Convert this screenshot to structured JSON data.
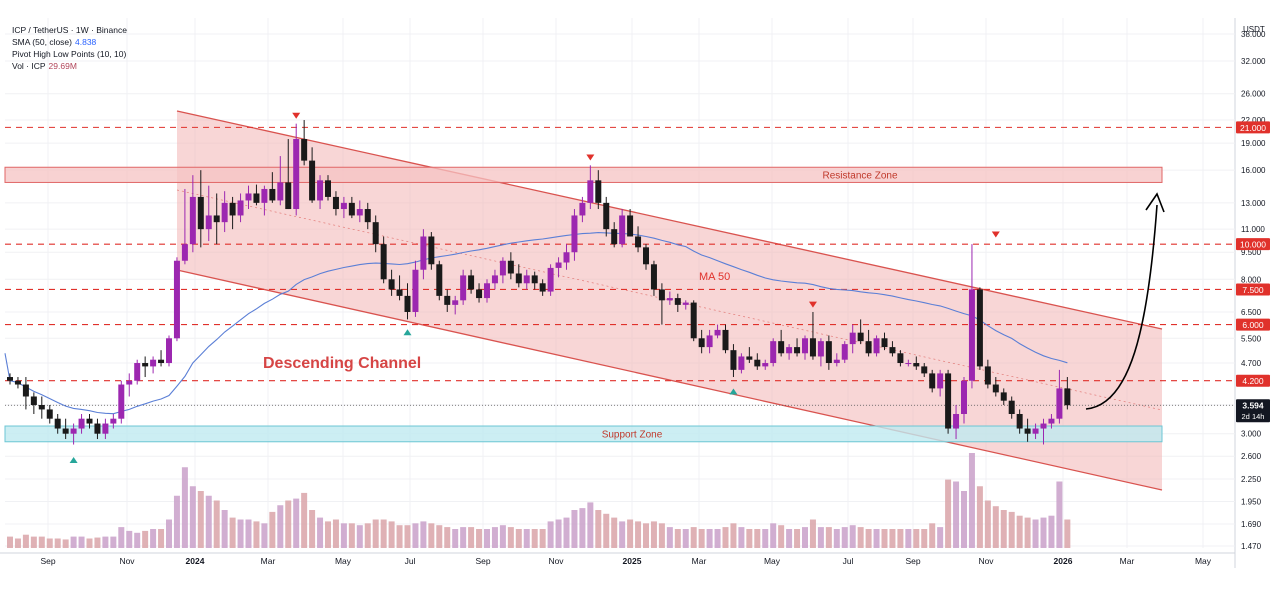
{
  "header": {
    "symbol_line": "ICP / TetherUS · 1W · Binance",
    "sma_label": "SMA (50, close)",
    "sma_value": "4.838",
    "pivot_label": "Pivot High Low Points (10, 10)",
    "vol_label": "Vol · ICP",
    "vol_value": "29.69M"
  },
  "price_unit": "USDT",
  "colors": {
    "up": "#9c27b0",
    "down": "#1a1a1a",
    "ma": "#5b7fd6",
    "channel_fill": "#f3b5b5",
    "channel_stroke": "#d9534f",
    "support_fill": "#bfeaf0",
    "resistance_fill": "#f6c3c3",
    "label_red": "#e0312b",
    "vol_up": "#c9a0c9",
    "vol_down": "#d9a3a8"
  },
  "chart_data": {
    "type": "candlestick",
    "x_ticks": [
      "Sep",
      "Nov",
      "2024",
      "Mar",
      "May",
      "Jul",
      "Sep",
      "Nov",
      "2025",
      "Mar",
      "May",
      "Jul",
      "Sep",
      "Nov",
      "2026",
      "Mar",
      "May"
    ],
    "y_ticks": [
      38.0,
      32.0,
      26.0,
      22.0,
      19.0,
      16.0,
      13.0,
      11.0,
      9.5,
      8.0,
      6.5,
      5.5,
      4.7,
      3.6,
      3.0,
      2.6,
      2.25,
      1.95,
      1.69,
      1.47
    ],
    "y_tick_labels": [
      "38.000",
      "32.000",
      "26.000",
      "22.000",
      "19.000",
      "16.000",
      "13.000",
      "11.000",
      "9.500",
      "8.000",
      "6.500",
      "5.500",
      "4.700",
      "3.600",
      "3.000",
      "2.600",
      "2.250",
      "1.950",
      "1.690",
      "1.470"
    ],
    "y_scale": "log",
    "price_labels": [
      {
        "value": 21.0,
        "text": "21.000"
      },
      {
        "value": 10.0,
        "text": "10.000"
      },
      {
        "value": 7.5,
        "text": "7.500"
      },
      {
        "value": 6.0,
        "text": "6.000"
      },
      {
        "value": 4.2,
        "text": "4.200"
      }
    ],
    "last_price": {
      "value": 3.594,
      "text": "3.594",
      "countdown": "2d 14h"
    },
    "zones": [
      {
        "name": "Resistance Zone",
        "from": 14.8,
        "to": 16.3
      },
      {
        "name": "Support Zone",
        "from": 2.85,
        "to": 3.15
      }
    ],
    "annotations": {
      "channel": "Descending Channel",
      "ma": "MA 50"
    },
    "candles": [
      [
        4.3,
        4.4,
        4.1,
        4.2
      ],
      [
        4.2,
        4.3,
        4.0,
        4.1
      ],
      [
        4.1,
        4.3,
        3.5,
        3.8
      ],
      [
        3.8,
        3.9,
        3.4,
        3.6
      ],
      [
        3.6,
        3.8,
        3.3,
        3.5
      ],
      [
        3.5,
        3.6,
        3.2,
        3.3
      ],
      [
        3.3,
        3.4,
        3.0,
        3.1
      ],
      [
        3.1,
        3.3,
        2.9,
        3.0
      ],
      [
        3.0,
        3.2,
        2.8,
        3.1
      ],
      [
        3.1,
        3.4,
        3.0,
        3.3
      ],
      [
        3.3,
        3.4,
        3.1,
        3.2
      ],
      [
        3.2,
        3.3,
        2.9,
        3.0
      ],
      [
        3.0,
        3.3,
        2.9,
        3.2
      ],
      [
        3.2,
        3.4,
        3.1,
        3.3
      ],
      [
        3.3,
        4.2,
        3.2,
        4.1
      ],
      [
        4.1,
        4.4,
        3.8,
        4.2
      ],
      [
        4.2,
        4.8,
        4.1,
        4.7
      ],
      [
        4.7,
        4.9,
        4.3,
        4.6
      ],
      [
        4.6,
        4.9,
        4.4,
        4.8
      ],
      [
        4.8,
        5.1,
        4.6,
        4.7
      ],
      [
        4.7,
        5.6,
        4.6,
        5.5
      ],
      [
        5.5,
        9.2,
        5.4,
        9.0
      ],
      [
        9.0,
        14.2,
        8.8,
        10.0
      ],
      [
        10.0,
        15.5,
        9.5,
        13.5
      ],
      [
        13.5,
        16.0,
        9.8,
        11.0
      ],
      [
        11.0,
        14.5,
        10.2,
        12.0
      ],
      [
        12.0,
        13.8,
        10.0,
        11.5
      ],
      [
        11.5,
        14.0,
        10.8,
        13.0
      ],
      [
        13.0,
        13.5,
        11.0,
        12.0
      ],
      [
        12.0,
        13.8,
        11.5,
        13.2
      ],
      [
        13.2,
        14.5,
        12.5,
        13.8
      ],
      [
        13.8,
        14.6,
        12.8,
        13.0
      ],
      [
        13.0,
        14.5,
        12.0,
        14.2
      ],
      [
        14.2,
        15.8,
        13.0,
        13.2
      ],
      [
        13.2,
        17.5,
        12.8,
        14.8
      ],
      [
        14.8,
        19.5,
        12.5,
        12.5
      ],
      [
        12.5,
        21.5,
        12.0,
        19.5
      ],
      [
        19.5,
        22.0,
        16.5,
        17.0
      ],
      [
        17.0,
        18.5,
        13.0,
        13.2
      ],
      [
        13.2,
        15.5,
        12.5,
        15.0
      ],
      [
        15.0,
        15.5,
        13.2,
        13.5
      ],
      [
        13.5,
        14.0,
        12.0,
        12.5
      ],
      [
        12.5,
        13.5,
        11.8,
        13.0
      ],
      [
        13.0,
        13.5,
        11.8,
        12.0
      ],
      [
        12.0,
        13.2,
        11.5,
        12.5
      ],
      [
        12.5,
        13.0,
        11.0,
        11.5
      ],
      [
        11.5,
        12.0,
        9.5,
        10.0
      ],
      [
        10.0,
        10.5,
        7.8,
        8.0
      ],
      [
        8.0,
        8.5,
        7.2,
        7.5
      ],
      [
        7.5,
        8.2,
        7.0,
        7.2
      ],
      [
        7.2,
        7.8,
        6.2,
        6.5
      ],
      [
        6.5,
        9.0,
        6.3,
        8.5
      ],
      [
        8.5,
        11.0,
        8.0,
        10.5
      ],
      [
        10.5,
        10.8,
        8.5,
        8.8
      ],
      [
        8.8,
        9.0,
        7.0,
        7.2
      ],
      [
        7.2,
        7.5,
        6.5,
        6.8
      ],
      [
        6.8,
        7.2,
        6.4,
        7.0
      ],
      [
        7.0,
        8.5,
        6.8,
        8.2
      ],
      [
        8.2,
        8.5,
        7.3,
        7.5
      ],
      [
        7.5,
        7.8,
        6.9,
        7.1
      ],
      [
        7.1,
        8.0,
        6.9,
        7.8
      ],
      [
        7.8,
        8.5,
        7.5,
        8.2
      ],
      [
        8.2,
        9.2,
        7.8,
        9.0
      ],
      [
        9.0,
        9.5,
        8.0,
        8.3
      ],
      [
        8.3,
        8.8,
        7.6,
        7.8
      ],
      [
        7.8,
        8.5,
        7.5,
        8.2
      ],
      [
        8.2,
        8.4,
        7.5,
        7.8
      ],
      [
        7.8,
        8.0,
        7.2,
        7.4
      ],
      [
        7.4,
        8.8,
        7.2,
        8.6
      ],
      [
        8.6,
        9.2,
        8.1,
        8.9
      ],
      [
        8.9,
        10.0,
        8.5,
        9.5
      ],
      [
        9.5,
        12.5,
        9.0,
        12.0
      ],
      [
        12.0,
        13.5,
        11.5,
        13.0
      ],
      [
        13.0,
        16.5,
        12.5,
        15.0
      ],
      [
        15.0,
        16.0,
        12.5,
        13.0
      ],
      [
        13.0,
        13.5,
        10.5,
        11.0
      ],
      [
        11.0,
        11.5,
        9.8,
        10.0
      ],
      [
        10.0,
        12.5,
        9.8,
        12.0
      ],
      [
        12.0,
        12.5,
        10.5,
        10.5
      ],
      [
        10.5,
        11.2,
        9.5,
        9.8
      ],
      [
        9.8,
        10.0,
        8.5,
        8.8
      ],
      [
        8.8,
        9.0,
        7.2,
        7.5
      ],
      [
        7.5,
        7.8,
        6.0,
        7.0
      ],
      [
        7.0,
        7.4,
        6.8,
        7.1
      ],
      [
        7.1,
        7.3,
        6.5,
        6.8
      ],
      [
        6.8,
        7.0,
        6.6,
        6.9
      ],
      [
        6.9,
        7.0,
        5.4,
        5.5
      ],
      [
        5.5,
        5.8,
        5.0,
        5.2
      ],
      [
        5.2,
        5.8,
        5.0,
        5.6
      ],
      [
        5.6,
        6.0,
        5.5,
        5.8
      ],
      [
        5.8,
        6.0,
        5.0,
        5.1
      ],
      [
        5.1,
        5.3,
        4.3,
        4.5
      ],
      [
        4.5,
        5.0,
        4.4,
        4.9
      ],
      [
        4.9,
        5.2,
        4.7,
        4.8
      ],
      [
        4.8,
        5.0,
        4.5,
        4.6
      ],
      [
        4.6,
        4.8,
        4.5,
        4.7
      ],
      [
        4.7,
        5.5,
        4.6,
        5.4
      ],
      [
        5.4,
        5.8,
        4.9,
        5.0
      ],
      [
        5.0,
        5.3,
        4.8,
        5.2
      ],
      [
        5.2,
        5.5,
        4.9,
        5.0
      ],
      [
        5.0,
        5.6,
        4.8,
        5.5
      ],
      [
        5.5,
        6.5,
        4.8,
        4.9
      ],
      [
        4.9,
        5.5,
        4.6,
        5.4
      ],
      [
        5.4,
        5.6,
        4.5,
        4.7
      ],
      [
        4.7,
        5.0,
        4.6,
        4.8
      ],
      [
        4.8,
        5.4,
        4.7,
        5.3
      ],
      [
        5.3,
        6.0,
        5.0,
        5.7
      ],
      [
        5.7,
        6.2,
        5.3,
        5.4
      ],
      [
        5.4,
        5.8,
        4.9,
        5.0
      ],
      [
        5.0,
        5.6,
        4.9,
        5.5
      ],
      [
        5.5,
        5.7,
        5.1,
        5.2
      ],
      [
        5.2,
        5.4,
        4.9,
        5.0
      ],
      [
        5.0,
        5.1,
        4.6,
        4.7
      ],
      [
        4.7,
        4.8,
        4.6,
        4.7
      ],
      [
        4.7,
        4.9,
        4.5,
        4.6
      ],
      [
        4.6,
        4.7,
        4.3,
        4.4
      ],
      [
        4.4,
        4.5,
        3.9,
        4.0
      ],
      [
        4.0,
        4.5,
        3.8,
        4.4
      ],
      [
        4.4,
        4.5,
        3.0,
        3.1
      ],
      [
        3.1,
        3.6,
        2.9,
        3.4
      ],
      [
        3.4,
        4.3,
        3.2,
        4.2
      ],
      [
        4.2,
        10.0,
        4.0,
        7.5
      ],
      [
        7.5,
        7.6,
        4.5,
        4.6
      ],
      [
        4.6,
        4.8,
        4.0,
        4.1
      ],
      [
        4.1,
        4.3,
        3.8,
        3.9
      ],
      [
        3.9,
        4.0,
        3.6,
        3.7
      ],
      [
        3.7,
        3.8,
        3.3,
        3.4
      ],
      [
        3.4,
        3.5,
        3.0,
        3.1
      ],
      [
        3.1,
        3.3,
        2.85,
        3.0
      ],
      [
        3.0,
        3.2,
        2.9,
        3.1
      ],
      [
        3.1,
        3.3,
        2.8,
        3.2
      ],
      [
        3.2,
        3.4,
        3.1,
        3.3
      ],
      [
        3.3,
        4.5,
        3.2,
        4.0
      ],
      [
        4.0,
        4.3,
        3.5,
        3.594
      ]
    ],
    "volume": [
      0.12,
      0.1,
      0.14,
      0.12,
      0.12,
      0.1,
      0.1,
      0.09,
      0.12,
      0.12,
      0.1,
      0.11,
      0.12,
      0.12,
      0.22,
      0.18,
      0.16,
      0.18,
      0.2,
      0.2,
      0.3,
      0.55,
      0.85,
      0.65,
      0.6,
      0.55,
      0.5,
      0.4,
      0.32,
      0.3,
      0.3,
      0.28,
      0.26,
      0.38,
      0.45,
      0.5,
      0.52,
      0.58,
      0.4,
      0.32,
      0.28,
      0.3,
      0.26,
      0.26,
      0.24,
      0.26,
      0.3,
      0.3,
      0.28,
      0.24,
      0.24,
      0.26,
      0.28,
      0.26,
      0.24,
      0.22,
      0.2,
      0.22,
      0.22,
      0.2,
      0.2,
      0.22,
      0.24,
      0.22,
      0.2,
      0.2,
      0.2,
      0.2,
      0.28,
      0.3,
      0.32,
      0.4,
      0.42,
      0.48,
      0.4,
      0.36,
      0.32,
      0.28,
      0.3,
      0.28,
      0.26,
      0.28,
      0.26,
      0.22,
      0.2,
      0.2,
      0.22,
      0.2,
      0.2,
      0.2,
      0.22,
      0.26,
      0.22,
      0.2,
      0.2,
      0.2,
      0.26,
      0.24,
      0.2,
      0.2,
      0.22,
      0.3,
      0.22,
      0.22,
      0.2,
      0.22,
      0.24,
      0.22,
      0.2,
      0.2,
      0.2,
      0.2,
      0.2,
      0.2,
      0.2,
      0.2,
      0.26,
      0.22,
      0.72,
      0.7,
      0.6,
      1.0,
      0.65,
      0.5,
      0.44,
      0.4,
      0.38,
      0.34,
      0.32,
      0.3,
      0.32,
      0.34,
      0.7,
      0.3
    ]
  }
}
